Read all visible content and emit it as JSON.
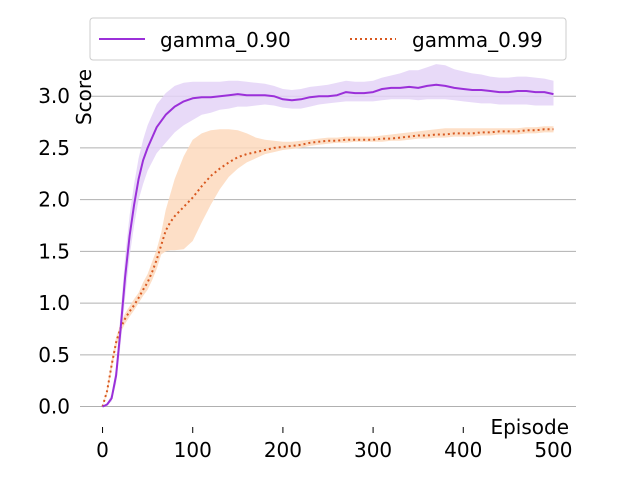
{
  "chart_data": {
    "type": "line",
    "title": "",
    "xlabel": "Episode",
    "ylabel": "Score",
    "xlim": [
      -25,
      525
    ],
    "ylim": [
      -0.13,
      3.35
    ],
    "xticks": [
      0,
      100,
      200,
      300,
      400,
      500
    ],
    "xtick_labels": [
      "0",
      "100",
      "200",
      "300",
      "400",
      "500"
    ],
    "yticks": [
      0.0,
      0.5,
      1.0,
      1.5,
      2.0,
      2.5,
      3.0
    ],
    "ytick_labels": [
      "0.0",
      "0.5",
      "1.0",
      "1.5",
      "2.0",
      "2.5",
      "3.0"
    ],
    "grid": "horizontal",
    "legend_position": "top-center",
    "series": [
      {
        "name": "gamma_0.90",
        "color": "#9b30d9",
        "band_color": "#e4d3f7",
        "line_style": "solid",
        "x": [
          0,
          5,
          10,
          15,
          20,
          25,
          30,
          35,
          40,
          45,
          50,
          60,
          70,
          80,
          90,
          100,
          110,
          120,
          130,
          140,
          150,
          160,
          170,
          180,
          190,
          200,
          210,
          220,
          230,
          240,
          250,
          260,
          270,
          280,
          290,
          300,
          310,
          320,
          330,
          340,
          350,
          360,
          370,
          380,
          390,
          400,
          410,
          420,
          430,
          440,
          450,
          460,
          470,
          480,
          490,
          500
        ],
        "y": [
          0.0,
          0.02,
          0.08,
          0.3,
          0.75,
          1.25,
          1.65,
          1.95,
          2.2,
          2.38,
          2.5,
          2.7,
          2.82,
          2.9,
          2.95,
          2.98,
          2.99,
          2.99,
          3.0,
          3.01,
          3.02,
          3.01,
          3.01,
          3.01,
          3.0,
          2.97,
          2.96,
          2.97,
          2.99,
          3.0,
          3.0,
          3.01,
          3.04,
          3.03,
          3.03,
          3.04,
          3.07,
          3.08,
          3.08,
          3.09,
          3.08,
          3.1,
          3.11,
          3.1,
          3.08,
          3.07,
          3.06,
          3.06,
          3.05,
          3.04,
          3.04,
          3.05,
          3.05,
          3.04,
          3.04,
          3.02
        ],
        "lower": [
          0.0,
          0.01,
          0.05,
          0.22,
          0.6,
          1.05,
          1.45,
          1.75,
          2.0,
          2.15,
          2.28,
          2.45,
          2.55,
          2.65,
          2.72,
          2.77,
          2.82,
          2.84,
          2.87,
          2.88,
          2.9,
          2.9,
          2.91,
          2.92,
          2.91,
          2.89,
          2.88,
          2.88,
          2.9,
          2.92,
          2.93,
          2.94,
          2.95,
          2.95,
          2.95,
          2.95,
          2.96,
          2.97,
          2.97,
          2.97,
          2.96,
          2.97,
          2.97,
          2.97,
          2.96,
          2.95,
          2.94,
          2.93,
          2.93,
          2.92,
          2.92,
          2.92,
          2.92,
          2.91,
          2.91,
          2.91
        ],
        "upper": [
          0.0,
          0.03,
          0.12,
          0.38,
          0.9,
          1.45,
          1.85,
          2.15,
          2.4,
          2.58,
          2.72,
          2.92,
          3.03,
          3.1,
          3.13,
          3.14,
          3.14,
          3.14,
          3.14,
          3.15,
          3.15,
          3.14,
          3.13,
          3.12,
          3.1,
          3.07,
          3.06,
          3.07,
          3.09,
          3.1,
          3.11,
          3.13,
          3.15,
          3.14,
          3.14,
          3.15,
          3.18,
          3.2,
          3.22,
          3.25,
          3.25,
          3.28,
          3.31,
          3.3,
          3.26,
          3.24,
          3.22,
          3.21,
          3.19,
          3.18,
          3.18,
          3.19,
          3.19,
          3.18,
          3.17,
          3.15
        ]
      },
      {
        "name": "gamma_0.99",
        "color": "#d8581f",
        "band_color": "#fdd9bd",
        "line_style": "dotted",
        "x": [
          0,
          5,
          10,
          15,
          20,
          25,
          30,
          35,
          40,
          45,
          50,
          55,
          60,
          65,
          70,
          75,
          80,
          90,
          100,
          110,
          120,
          130,
          140,
          150,
          160,
          170,
          180,
          190,
          200,
          210,
          220,
          230,
          240,
          250,
          260,
          270,
          280,
          290,
          300,
          310,
          320,
          330,
          340,
          350,
          360,
          370,
          380,
          390,
          400,
          410,
          420,
          430,
          440,
          450,
          460,
          470,
          480,
          490,
          500
        ],
        "y": [
          0.0,
          0.15,
          0.4,
          0.62,
          0.76,
          0.85,
          0.92,
          0.98,
          1.05,
          1.13,
          1.2,
          1.3,
          1.42,
          1.56,
          1.7,
          1.78,
          1.84,
          1.93,
          2.02,
          2.13,
          2.23,
          2.3,
          2.36,
          2.41,
          2.44,
          2.46,
          2.48,
          2.5,
          2.51,
          2.52,
          2.53,
          2.55,
          2.56,
          2.57,
          2.57,
          2.58,
          2.58,
          2.58,
          2.58,
          2.59,
          2.59,
          2.6,
          2.61,
          2.62,
          2.62,
          2.63,
          2.63,
          2.64,
          2.64,
          2.64,
          2.65,
          2.65,
          2.66,
          2.66,
          2.66,
          2.67,
          2.67,
          2.68,
          2.68
        ],
        "lower": [
          0.0,
          0.12,
          0.35,
          0.57,
          0.72,
          0.8,
          0.87,
          0.93,
          1.0,
          1.07,
          1.13,
          1.22,
          1.33,
          1.47,
          1.5,
          1.51,
          1.51,
          1.52,
          1.6,
          1.78,
          1.95,
          2.1,
          2.22,
          2.3,
          2.36,
          2.4,
          2.44,
          2.46,
          2.48,
          2.49,
          2.5,
          2.52,
          2.53,
          2.54,
          2.55,
          2.55,
          2.56,
          2.56,
          2.56,
          2.56,
          2.57,
          2.57,
          2.58,
          2.59,
          2.59,
          2.6,
          2.6,
          2.61,
          2.61,
          2.61,
          2.62,
          2.62,
          2.63,
          2.63,
          2.63,
          2.64,
          2.64,
          2.65,
          2.65
        ],
        "upper": [
          0.0,
          0.18,
          0.45,
          0.67,
          0.8,
          0.9,
          0.97,
          1.04,
          1.1,
          1.2,
          1.28,
          1.4,
          1.52,
          1.68,
          1.9,
          2.05,
          2.2,
          2.42,
          2.58,
          2.64,
          2.67,
          2.68,
          2.68,
          2.67,
          2.64,
          2.6,
          2.58,
          2.57,
          2.56,
          2.56,
          2.57,
          2.58,
          2.59,
          2.6,
          2.6,
          2.61,
          2.61,
          2.61,
          2.61,
          2.62,
          2.63,
          2.64,
          2.65,
          2.66,
          2.67,
          2.68,
          2.69,
          2.69,
          2.69,
          2.69,
          2.69,
          2.69,
          2.69,
          2.69,
          2.69,
          2.7,
          2.7,
          2.71,
          2.71
        ]
      }
    ]
  }
}
